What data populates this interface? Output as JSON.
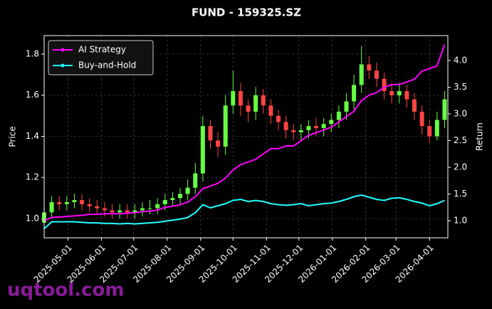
{
  "chart_data": {
    "type": "candlestick",
    "title": "FUND - 159325.SZ",
    "ylabel": "Price",
    "y2label": "Return",
    "watermark": "uqtool.com",
    "up_color": "#66ff44",
    "down_color": "#ff4444",
    "grid": true,
    "legend": "upper left",
    "x": [
      "2025-04-09",
      "2025-04-16",
      "2025-04-23",
      "2025-04-30",
      "2025-05-07",
      "2025-05-14",
      "2025-05-21",
      "2025-05-28",
      "2025-06-04",
      "2025-06-11",
      "2025-06-18",
      "2025-06-25",
      "2025-07-02",
      "2025-07-09",
      "2025-07-16",
      "2025-07-23",
      "2025-07-30",
      "2025-08-06",
      "2025-08-13",
      "2025-08-20",
      "2025-08-27",
      "2025-09-03",
      "2025-09-10",
      "2025-09-17",
      "2025-09-24",
      "2025-10-01",
      "2025-10-08",
      "2025-10-15",
      "2025-10-22",
      "2025-10-29",
      "2025-11-05",
      "2025-11-12",
      "2025-11-19",
      "2025-11-26",
      "2025-12-03",
      "2025-12-10",
      "2025-12-17",
      "2025-12-24",
      "2025-12-31",
      "2026-01-07",
      "2026-01-14",
      "2026-01-21",
      "2026-01-28",
      "2026-02-04",
      "2026-02-11",
      "2026-02-18",
      "2026-02-25",
      "2026-03-04",
      "2026-03-11",
      "2026-03-18",
      "2026-03-25",
      "2026-04-01",
      "2026-04-08",
      "2026-04-15"
    ],
    "open": [
      0.98,
      1.03,
      1.08,
      1.07,
      1.08,
      1.09,
      1.07,
      1.06,
      1.05,
      1.04,
      1.03,
      1.04,
      1.03,
      1.04,
      1.05,
      1.05,
      1.07,
      1.09,
      1.1,
      1.12,
      1.15,
      1.22,
      1.45,
      1.38,
      1.35,
      1.55,
      1.62,
      1.55,
      1.52,
      1.6,
      1.55,
      1.5,
      1.47,
      1.43,
      1.42,
      1.43,
      1.45,
      1.44,
      1.46,
      1.48,
      1.52,
      1.57,
      1.65,
      1.75,
      1.72,
      1.68,
      1.62,
      1.6,
      1.62,
      1.58,
      1.52,
      1.45,
      1.4,
      1.48
    ],
    "high": [
      1.06,
      1.11,
      1.11,
      1.11,
      1.12,
      1.12,
      1.1,
      1.09,
      1.08,
      1.07,
      1.07,
      1.07,
      1.07,
      1.08,
      1.09,
      1.1,
      1.12,
      1.13,
      1.15,
      1.19,
      1.27,
      1.5,
      1.48,
      1.42,
      1.6,
      1.72,
      1.66,
      1.58,
      1.64,
      1.63,
      1.58,
      1.53,
      1.5,
      1.46,
      1.46,
      1.48,
      1.49,
      1.49,
      1.51,
      1.55,
      1.61,
      1.7,
      1.84,
      1.79,
      1.76,
      1.71,
      1.66,
      1.66,
      1.65,
      1.61,
      1.55,
      1.48,
      1.52,
      1.62
    ],
    "low": [
      0.94,
      1.0,
      1.04,
      1.04,
      1.05,
      1.04,
      1.03,
      1.02,
      1.01,
      1.0,
      1.0,
      1.0,
      1.0,
      1.01,
      1.02,
      1.02,
      1.04,
      1.06,
      1.07,
      1.09,
      1.12,
      1.18,
      1.34,
      1.3,
      1.31,
      1.51,
      1.5,
      1.47,
      1.48,
      1.51,
      1.46,
      1.43,
      1.39,
      1.38,
      1.38,
      1.39,
      1.4,
      1.4,
      1.42,
      1.44,
      1.48,
      1.53,
      1.61,
      1.68,
      1.64,
      1.58,
      1.56,
      1.56,
      1.54,
      1.48,
      1.41,
      1.37,
      1.38,
      1.44
    ],
    "close": [
      1.03,
      1.08,
      1.07,
      1.08,
      1.09,
      1.07,
      1.06,
      1.05,
      1.04,
      1.03,
      1.04,
      1.03,
      1.04,
      1.05,
      1.05,
      1.07,
      1.09,
      1.1,
      1.12,
      1.15,
      1.22,
      1.45,
      1.38,
      1.35,
      1.55,
      1.62,
      1.55,
      1.52,
      1.6,
      1.55,
      1.5,
      1.47,
      1.43,
      1.42,
      1.43,
      1.45,
      1.44,
      1.46,
      1.48,
      1.52,
      1.57,
      1.65,
      1.75,
      1.72,
      1.68,
      1.62,
      1.6,
      1.62,
      1.58,
      1.52,
      1.45,
      1.4,
      1.48,
      1.58
    ],
    "series": [
      {
        "name": "AI Strategy",
        "color": "#ff00ff",
        "axis": "y2",
        "values": [
          1.0,
          1.06,
          1.07,
          1.08,
          1.09,
          1.1,
          1.12,
          1.12,
          1.13,
          1.13,
          1.13,
          1.14,
          1.15,
          1.17,
          1.18,
          1.2,
          1.25,
          1.27,
          1.3,
          1.35,
          1.45,
          1.6,
          1.65,
          1.7,
          1.8,
          1.95,
          2.05,
          2.1,
          2.15,
          2.25,
          2.35,
          2.35,
          2.4,
          2.4,
          2.5,
          2.6,
          2.65,
          2.7,
          2.75,
          2.85,
          2.95,
          3.05,
          3.25,
          3.35,
          3.4,
          3.5,
          3.55,
          3.55,
          3.6,
          3.65,
          3.8,
          3.85,
          3.9,
          4.3
        ]
      },
      {
        "name": "Buy-and-Hold",
        "color": "#22ffff",
        "axis": "y2",
        "values": [
          0.85,
          0.98,
          0.98,
          0.98,
          0.98,
          0.97,
          0.96,
          0.96,
          0.95,
          0.95,
          0.94,
          0.95,
          0.94,
          0.95,
          0.96,
          0.97,
          0.99,
          1.01,
          1.03,
          1.06,
          1.15,
          1.3,
          1.24,
          1.28,
          1.32,
          1.38,
          1.4,
          1.36,
          1.38,
          1.36,
          1.32,
          1.3,
          1.29,
          1.3,
          1.32,
          1.28,
          1.3,
          1.32,
          1.33,
          1.36,
          1.4,
          1.45,
          1.48,
          1.44,
          1.4,
          1.38,
          1.42,
          1.43,
          1.4,
          1.36,
          1.33,
          1.28,
          1.32,
          1.38
        ]
      }
    ],
    "xlim": [
      "2025-04-09",
      "2026-04-18"
    ],
    "xticks": [
      "2025-05-01",
      "2025-06-01",
      "2025-07-01",
      "2025-08-01",
      "2025-09-01",
      "2025-10-01",
      "2025-11-01",
      "2025-12-01",
      "2026-01-01",
      "2026-02-01",
      "2026-03-01",
      "2026-04-01"
    ],
    "ylim": [
      0.9065,
      1.89
    ],
    "yticks": [
      {
        "value": 1.0,
        "label": "1.0"
      },
      {
        "value": 1.2,
        "label": "1.2"
      },
      {
        "value": 1.4,
        "label": "1.4"
      },
      {
        "value": 1.6,
        "label": "1.6"
      },
      {
        "value": 1.8,
        "label": "1.8"
      }
    ],
    "y2lim": [
      0.68,
      4.467
    ],
    "y2ticks": [
      {
        "value": 1.0,
        "label": "1.0"
      },
      {
        "value": 1.5,
        "label": "1.5"
      },
      {
        "value": 2.0,
        "label": "2.0"
      },
      {
        "value": 2.5,
        "label": "2.5"
      },
      {
        "value": 3.0,
        "label": "3.0"
      },
      {
        "value": 3.5,
        "label": "3.5"
      },
      {
        "value": 4.0,
        "label": "4.0"
      }
    ]
  }
}
